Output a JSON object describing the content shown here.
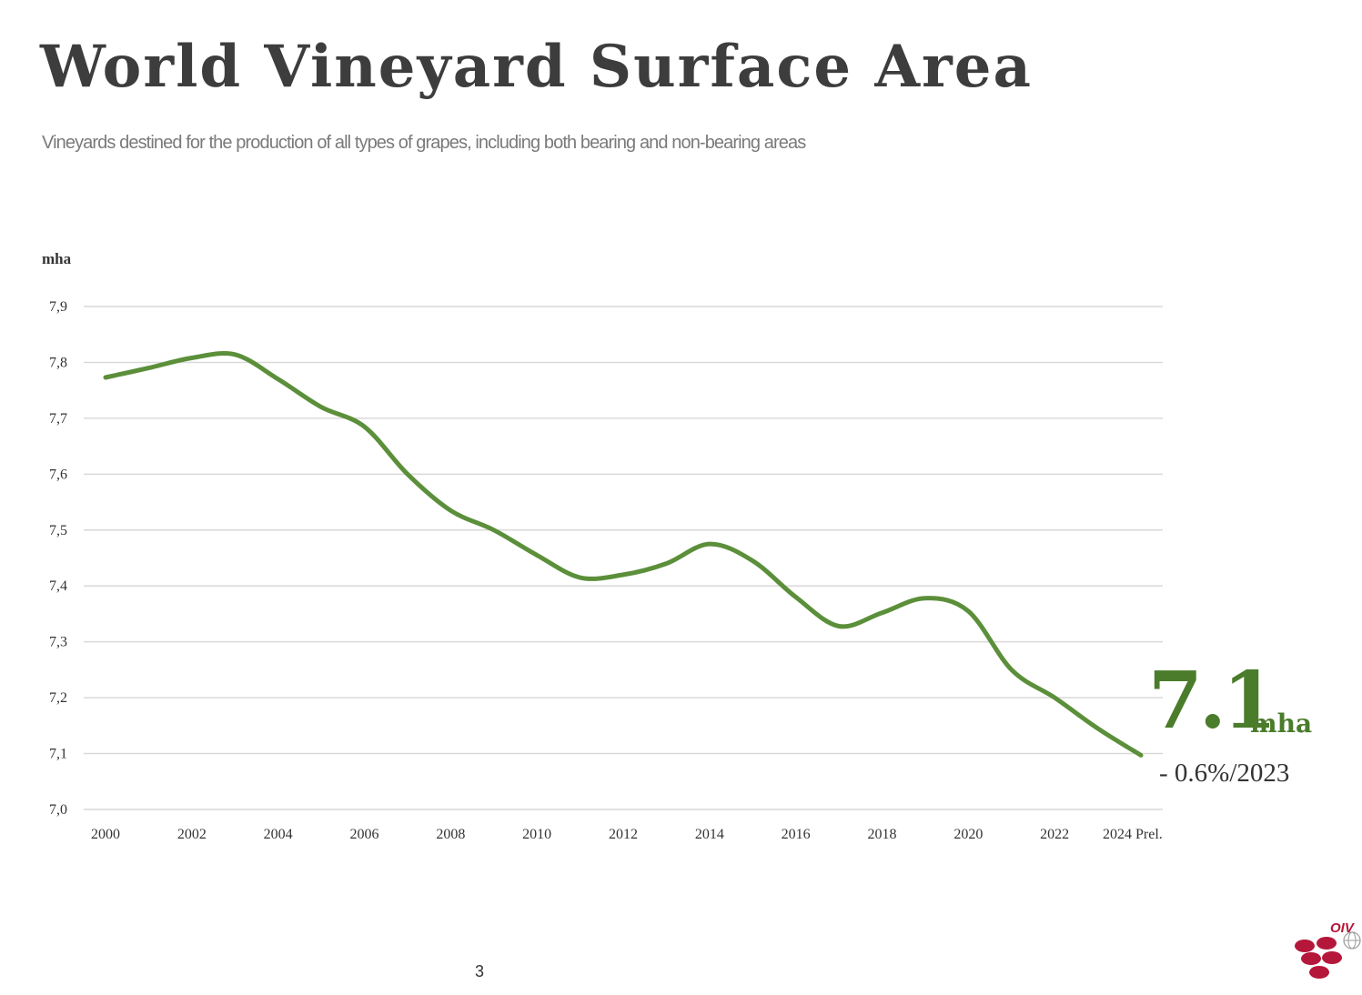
{
  "header": {
    "title": "World Vineyard Surface Area",
    "subtitle": "Vineyards destined for the production of all types of grapes, including both bearing and non-bearing areas"
  },
  "highlight": {
    "value": "7.1",
    "unit": "mha",
    "change": "- 0.6%/2023"
  },
  "footer": {
    "page_number": "3",
    "logo_text": "OIV"
  },
  "colors": {
    "series": "#5b8f3a",
    "highlight": "#4a7c2b",
    "title": "#3d3d3d",
    "grid": "#d9d9d9",
    "logo": "#b5173a"
  },
  "chart_data": {
    "type": "line",
    "title": "",
    "xlabel": "",
    "ylabel": "mha",
    "ylim": [
      7.0,
      7.9
    ],
    "yticks": [
      7.0,
      7.1,
      7.2,
      7.3,
      7.4,
      7.5,
      7.6,
      7.7,
      7.8,
      7.9
    ],
    "ytick_labels": [
      "7,0",
      "7,1",
      "7,2",
      "7,3",
      "7,4",
      "7,5",
      "7,6",
      "7,7",
      "7,8",
      "7,9"
    ],
    "x": [
      2000,
      2001,
      2002,
      2003,
      2004,
      2005,
      2006,
      2007,
      2008,
      2009,
      2010,
      2011,
      2012,
      2013,
      2014,
      2015,
      2016,
      2017,
      2018,
      2019,
      2020,
      2021,
      2022,
      2023,
      2024
    ],
    "xtick_labels": [
      "2000",
      "2002",
      "2004",
      "2006",
      "2008",
      "2010",
      "2012",
      "2014",
      "2016",
      "2018",
      "2020",
      "2022",
      "2024 Prel."
    ],
    "xtick_values": [
      2000,
      2002,
      2004,
      2006,
      2008,
      2010,
      2012,
      2014,
      2016,
      2018,
      2020,
      2022,
      2024
    ],
    "grid": true,
    "series": [
      {
        "values": [
          7.773,
          7.79,
          7.808,
          7.814,
          7.77,
          7.72,
          7.685,
          7.6,
          7.535,
          7.5,
          7.455,
          7.415,
          7.42,
          7.44,
          7.475,
          7.445,
          7.38,
          7.328,
          7.352,
          7.378,
          7.355,
          7.25,
          7.2,
          7.145,
          7.097
        ]
      }
    ]
  }
}
